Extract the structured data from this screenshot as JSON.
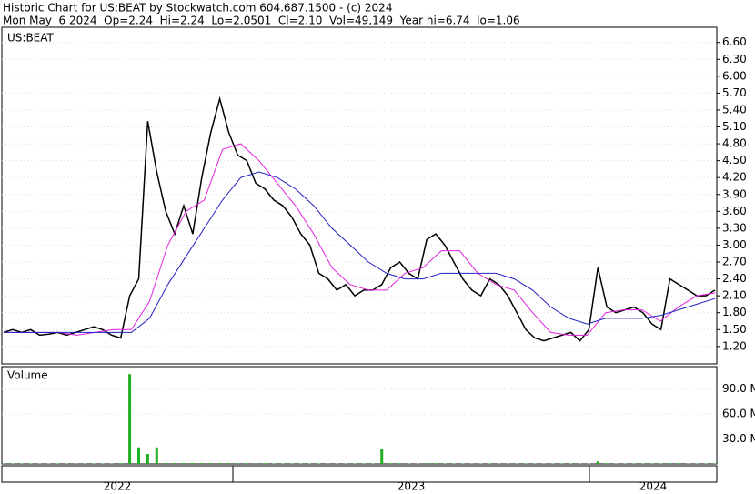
{
  "chart_data": {
    "type": "stock",
    "title": "Historic Chart for US:BEAT by Stockwatch.com 604.687.1500 - (c) 2024",
    "subtitle": "Mon May  6 2024  Op=2.24  Hi=2.24  Lo=2.0501  Cl=2.10  Vol=49,149  Year hi=6.74  lo=1.06",
    "symbol": "US:BEAT",
    "volume_label": "Volume",
    "years": [
      "2022",
      "2023",
      "2024"
    ],
    "ylim": [
      0.89,
      6.87
    ],
    "yticks": [
      {
        "value": 1.2,
        "label": "1.20"
      },
      {
        "value": 1.5,
        "label": "1.50"
      },
      {
        "value": 1.8,
        "label": "1.80"
      },
      {
        "value": 2.1,
        "label": "2.10"
      },
      {
        "value": 2.4,
        "label": "2.40"
      },
      {
        "value": 2.7,
        "label": "2.70"
      },
      {
        "value": 3.0,
        "label": "3.00"
      },
      {
        "value": 3.3,
        "label": "3.30"
      },
      {
        "value": 3.6,
        "label": "3.60"
      },
      {
        "value": 3.9,
        "label": "3.90"
      },
      {
        "value": 4.2,
        "label": "4.20"
      },
      {
        "value": 4.5,
        "label": "4.50"
      },
      {
        "value": 4.8,
        "label": "4.80"
      },
      {
        "value": 5.1,
        "label": "5.10"
      },
      {
        "value": 5.4,
        "label": "5.40"
      },
      {
        "value": 5.7,
        "label": "5.70"
      },
      {
        "value": 6.0,
        "label": "6.00"
      },
      {
        "value": 6.3,
        "label": "6.30"
      },
      {
        "value": 6.6,
        "label": "6.60"
      }
    ],
    "series": [
      {
        "color": "#000000",
        "values": [
          1.45,
          1.5,
          1.45,
          1.5,
          1.4,
          1.42,
          1.45,
          1.4,
          1.45,
          1.5,
          1.55,
          1.5,
          1.4,
          1.35,
          2.1,
          2.4,
          5.2,
          4.3,
          3.6,
          3.2,
          3.7,
          3.2,
          4.2,
          5.0,
          5.6,
          5.0,
          4.6,
          4.5,
          4.1,
          4.0,
          3.8,
          3.7,
          3.5,
          3.2,
          3.0,
          2.5,
          2.4,
          2.2,
          2.3,
          2.1,
          2.2,
          2.2,
          2.3,
          2.6,
          2.7,
          2.5,
          2.4,
          3.1,
          3.2,
          3.0,
          2.7,
          2.4,
          2.2,
          2.1,
          2.4,
          2.3,
          2.1,
          1.8,
          1.5,
          1.35,
          1.3,
          1.35,
          1.4,
          1.45,
          1.3,
          1.5,
          2.6,
          1.9,
          1.8,
          1.85,
          1.9,
          1.8,
          1.6,
          1.5,
          2.4,
          2.3,
          2.2,
          2.1,
          2.1,
          2.2
        ]
      },
      {
        "color": "#e020e0",
        "values": [
          1.45,
          1.45,
          1.45,
          1.45,
          1.4,
          1.45,
          1.5,
          1.5,
          2.0,
          3.0,
          3.6,
          3.8,
          4.7,
          4.8,
          4.5,
          4.1,
          3.7,
          3.2,
          2.6,
          2.3,
          2.2,
          2.2,
          2.5,
          2.6,
          2.9,
          2.9,
          2.5,
          2.3,
          2.2,
          1.8,
          1.45,
          1.4,
          1.4,
          1.8,
          1.85,
          1.85,
          1.65,
          1.9,
          2.1,
          2.15
        ]
      },
      {
        "color": "#2020c0",
        "values": [
          1.45,
          1.45,
          1.45,
          1.45,
          1.45,
          1.45,
          1.45,
          1.45,
          1.7,
          2.3,
          2.8,
          3.3,
          3.8,
          4.2,
          4.3,
          4.2,
          4.0,
          3.7,
          3.3,
          3.0,
          2.7,
          2.5,
          2.4,
          2.4,
          2.5,
          2.5,
          2.5,
          2.5,
          2.4,
          2.2,
          1.9,
          1.7,
          1.6,
          1.7,
          1.7,
          1.7,
          1.75,
          1.85,
          1.95,
          2.05
        ]
      }
    ],
    "volume": {
      "color": "#20b020",
      "values": [
        0.5,
        0.5,
        0.5,
        0.5,
        0.5,
        0.5,
        0.5,
        0.5,
        0.5,
        0.5,
        0.5,
        0.5,
        0.5,
        0.8,
        108,
        20,
        12,
        20,
        1,
        1,
        1,
        1,
        1,
        1,
        1,
        1,
        0.8,
        0.8,
        0.8,
        0.8,
        0.5,
        0.5,
        0.5,
        0.5,
        0.5,
        0.5,
        0.5,
        0.5,
        0.5,
        0.5,
        0.5,
        0.5,
        18,
        0.8,
        0.8,
        0.5,
        0.5,
        0.8,
        0.8,
        0.5,
        0.5,
        0.5,
        0.5,
        0.5,
        0.5,
        0.5,
        0.5,
        0.5,
        0.5,
        0.5,
        0.5,
        0.5,
        0.5,
        0.5,
        0.5,
        0.5,
        3,
        0.8,
        0.5,
        0.5,
        0.5,
        0.5,
        0.5,
        0.5,
        0.8,
        0.8,
        0.5,
        0.5,
        0.5,
        0.5
      ]
    },
    "vlim": [
      0,
      117
    ],
    "vticks": [
      {
        "value": 30,
        "label": "30.0 M"
      },
      {
        "value": 60,
        "label": "60.0 M"
      },
      {
        "value": 90,
        "label": "90.0 M"
      }
    ],
    "grid": true
  }
}
